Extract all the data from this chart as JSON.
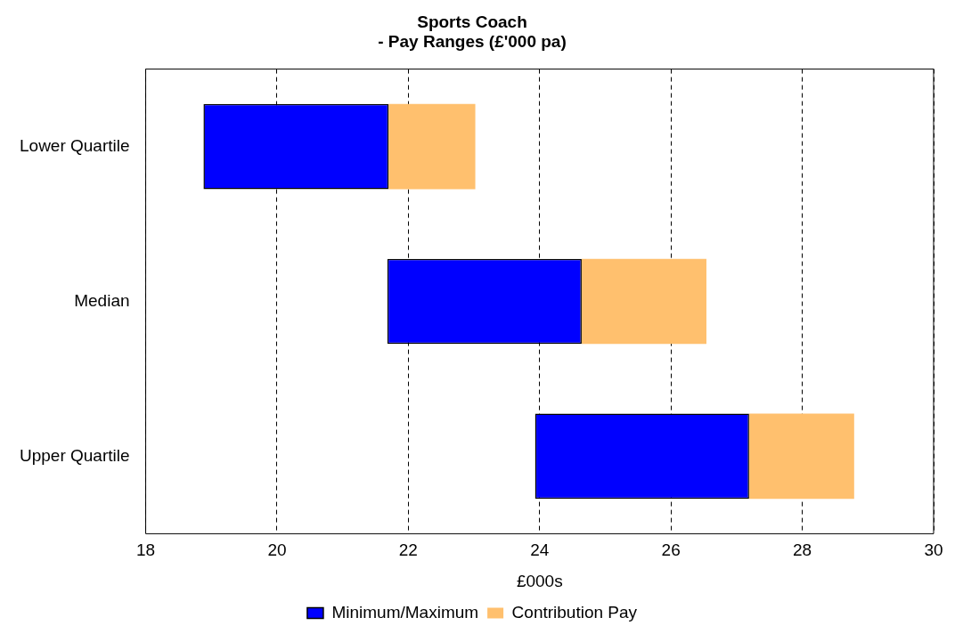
{
  "chart_data": {
    "type": "bar",
    "title": [
      "Sports Coach",
      "- Pay Ranges (£'000 pa)"
    ],
    "xlabel": "£000s",
    "orientation": "horizontal",
    "categories": [
      "Lower Quartile",
      "Median",
      "Upper Quartile"
    ],
    "series": [
      {
        "name": "Minimum/Maximum",
        "color": "#0000ff",
        "base": [
          18.88,
          21.68,
          23.93
        ],
        "values": [
          2.82,
          2.96,
          3.26
        ]
      },
      {
        "name": "Contribution Pay",
        "color": "#ffc06e",
        "base": [
          21.7,
          24.64,
          27.19
        ],
        "values": [
          1.32,
          1.9,
          1.6
        ]
      }
    ],
    "xlim": [
      18,
      30
    ],
    "xticks": [
      18,
      20,
      22,
      24,
      26,
      28,
      30
    ],
    "grid": "x",
    "legend": "bottom"
  }
}
